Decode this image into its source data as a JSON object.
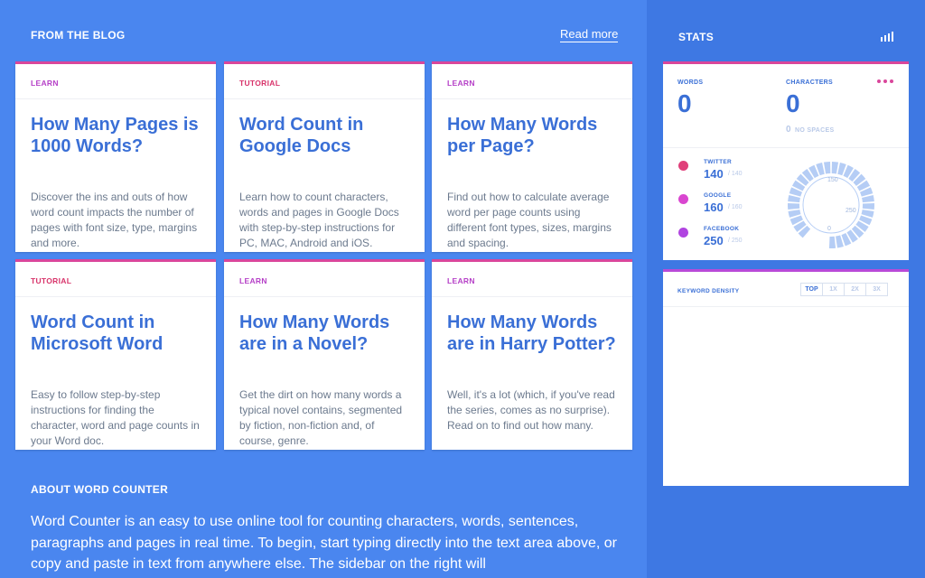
{
  "blog": {
    "heading": "FROM THE BLOG",
    "read_more": "Read more",
    "cards": [
      {
        "tag": "LEARN",
        "title": "How Many Pages is 1000 Words?",
        "text": "Discover the ins and outs of how word count impacts the number of pages with font size, type, margins and more."
      },
      {
        "tag": "TUTORIAL",
        "title": "Word Count in Google Docs",
        "text": "Learn how to count characters, words and pages in Google Docs with step-by-step instructions for PC, MAC, Android and iOS."
      },
      {
        "tag": "LEARN",
        "title": "How Many Words per Page?",
        "text": "Find out how to calculate average word per page counts using different font types, sizes, margins and spacing."
      },
      {
        "tag": "TUTORIAL",
        "title": "Word Count in Microsoft Word",
        "text": "Easy to follow step-by-step instructions for finding the character, word and page counts in your Word doc."
      },
      {
        "tag": "LEARN",
        "title": "How Many Words are in a Novel?",
        "text": "Get the dirt on how many words a typical novel contains, segmented by fiction, non-fiction and, of course, genre."
      },
      {
        "tag": "LEARN",
        "title": "How Many Words are in Harry Potter?",
        "text": "Well, it's a lot (which, if you've read the series, comes as no surprise). Read on to find out how many."
      }
    ]
  },
  "about": {
    "heading": "ABOUT WORD COUNTER",
    "text": "Word Counter is an easy to use online tool for counting characters, words, sentences, paragraphs and pages in real time. To begin, start typing directly into the text area above, or copy and paste in text from anywhere else. The sidebar on the right will"
  },
  "stats": {
    "heading": "STATS",
    "words": {
      "label": "WORDS",
      "value": "0"
    },
    "characters": {
      "label": "CHARACTERS",
      "value": "0",
      "no_spaces_value": "0",
      "no_spaces_label": "NO SPACES"
    },
    "social": [
      {
        "name": "TWITTER",
        "count": "140",
        "limit": "/ 140"
      },
      {
        "name": "GOOGLE",
        "count": "160",
        "limit": "/ 160"
      },
      {
        "name": "FACEBOOK",
        "count": "250",
        "limit": "/ 250"
      }
    ],
    "gauge_labels": [
      "150",
      "250",
      "0"
    ],
    "keyword_density": {
      "heading": "KEYWORD DENSITY",
      "tabs": [
        "TOP",
        "1X",
        "2X",
        "3X"
      ]
    }
  }
}
